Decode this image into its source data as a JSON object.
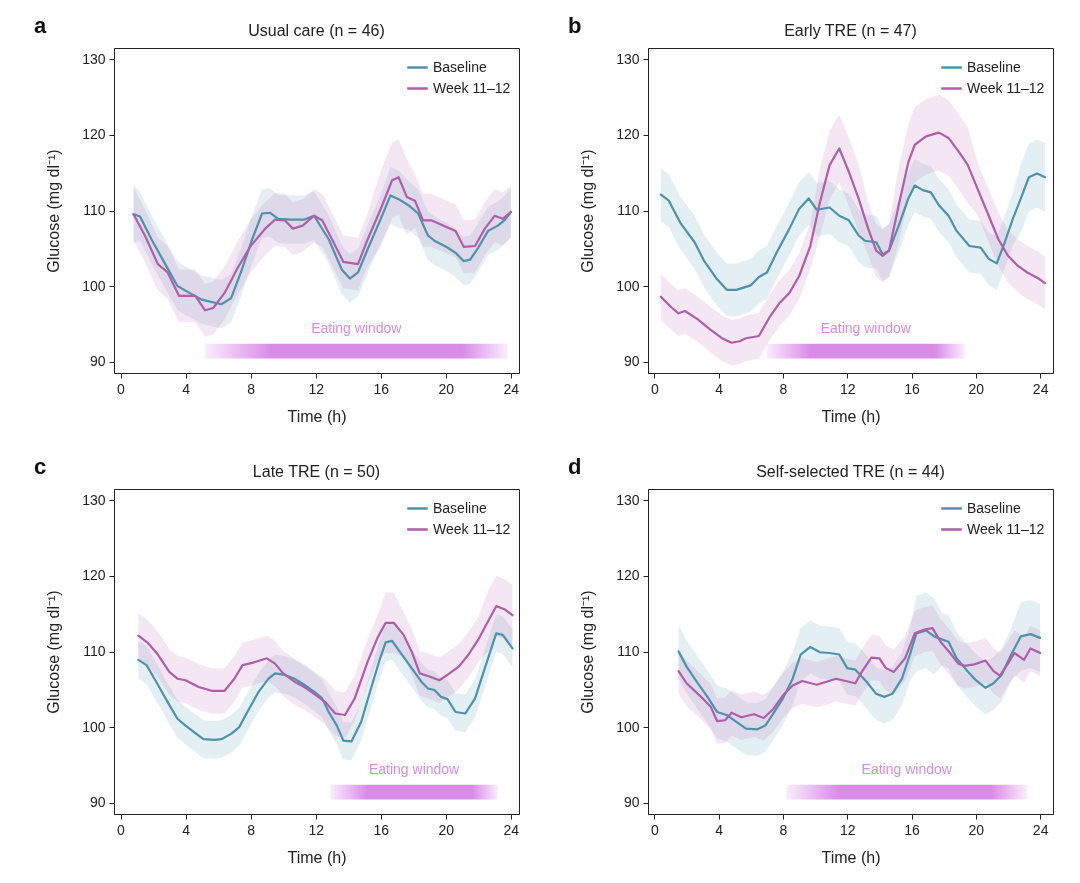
{
  "chart_data": [
    {
      "type": "line",
      "title": "Usual care (n = 46)",
      "xlabel": "Time (h)",
      "ylabel": "Glucose (mg dl⁻¹)",
      "annotations": [
        "a"
      ],
      "xlim": [
        -0.4,
        24.5
      ],
      "ylim": [
        88.5,
        131.5
      ],
      "xticks": [
        0,
        4,
        8,
        12,
        16,
        20,
        24
      ],
      "yticks": [
        90,
        100,
        110,
        120,
        130
      ],
      "grid": false,
      "legend": "top right",
      "bands": [
        {
          "axis": "x",
          "from": 5.2,
          "to": 23.8,
          "label": "Eating window",
          "color": "#d98be8"
        }
      ],
      "series": [
        {
          "name": "Baseline",
          "color": "#4b93ad",
          "x": [
            0.8,
            1.2,
            1.9,
            2.7,
            3.5,
            4.4,
            5.0,
            5.8,
            6.2,
            6.8,
            7.4,
            8.1,
            8.7,
            9.2,
            9.7,
            10.5,
            11.3,
            11.9,
            12.8,
            13.6,
            14.1,
            14.6,
            15.2,
            16.0,
            16.6,
            17.1,
            17.7,
            18.3,
            18.9,
            19.3,
            20.1,
            20.6,
            21.1,
            21.5,
            22.0,
            22.6,
            23.2,
            23.6,
            24.0
          ],
          "values": [
            109.5,
            109.2,
            106.2,
            103.1,
            100.0,
            98.9,
            98.2,
            97.8,
            97.6,
            98.4,
            101.8,
            106.2,
            109.6,
            109.7,
            108.9,
            108.8,
            108.8,
            109.3,
            106.2,
            102.2,
            101.0,
            101.8,
            104.9,
            108.9,
            112.0,
            111.5,
            110.7,
            109.6,
            106.7,
            106.0,
            105.1,
            104.4,
            103.3,
            103.5,
            105.1,
            107.3,
            108.0,
            108.7,
            109.8
          ],
          "lower": [
            105.7,
            106.0,
            103.0,
            99.9,
            96.8,
            95.7,
            95.0,
            94.6,
            94.4,
            95.2,
            98.6,
            103.0,
            106.4,
            106.5,
            105.7,
            105.6,
            105.6,
            106.1,
            103.0,
            99.0,
            97.8,
            98.6,
            101.7,
            105.7,
            108.2,
            107.7,
            107.5,
            106.4,
            103.5,
            102.8,
            101.9,
            101.2,
            100.1,
            100.3,
            101.9,
            104.1,
            104.8,
            105.5,
            106.6
          ],
          "upper": [
            113.3,
            112.4,
            109.4,
            106.3,
            103.2,
            102.1,
            101.4,
            101.0,
            100.8,
            101.6,
            105.0,
            109.4,
            112.8,
            112.9,
            112.1,
            112.0,
            112.0,
            112.5,
            109.4,
            105.4,
            104.2,
            105.0,
            108.1,
            112.1,
            115.8,
            115.3,
            113.9,
            112.8,
            109.9,
            109.2,
            108.3,
            107.6,
            106.5,
            106.7,
            108.3,
            110.5,
            111.2,
            111.9,
            113.0
          ]
        },
        {
          "name": "Week 11–12",
          "color": "#b25cac",
          "x": [
            0.8,
            1.5,
            2.3,
            2.9,
            3.6,
            4.6,
            5.2,
            5.7,
            6.4,
            7.2,
            8.0,
            8.9,
            9.5,
            10.1,
            10.6,
            11.2,
            11.9,
            12.4,
            13.0,
            13.7,
            14.6,
            15.2,
            16.0,
            16.7,
            17.1,
            17.6,
            18.1,
            18.6,
            19.1,
            20.6,
            21.1,
            21.8,
            22.4,
            23.0,
            23.5,
            24.0
          ],
          "values": [
            109.5,
            106.7,
            102.9,
            101.8,
            98.7,
            98.7,
            96.8,
            97.1,
            99.1,
            102.4,
            105.3,
            107.6,
            108.8,
            108.7,
            107.6,
            108.0,
            109.3,
            108.7,
            106.2,
            103.2,
            102.9,
            106.2,
            110.2,
            114.0,
            114.4,
            111.8,
            111.3,
            108.7,
            108.7,
            107.3,
            105.2,
            105.3,
            107.6,
            109.3,
            108.9,
            109.8
          ],
          "lower": [
            106.0,
            103.2,
            99.4,
            98.3,
            95.2,
            95.2,
            93.3,
            93.6,
            95.6,
            98.9,
            101.8,
            104.1,
            105.3,
            105.2,
            104.1,
            104.5,
            105.8,
            105.2,
            102.7,
            99.7,
            99.4,
            102.7,
            105.2,
            109.0,
            109.4,
            106.8,
            107.8,
            105.2,
            105.2,
            103.8,
            101.7,
            101.8,
            104.1,
            105.8,
            105.4,
            106.3
          ],
          "upper": [
            113.0,
            110.2,
            106.4,
            105.3,
            102.2,
            102.2,
            100.3,
            100.6,
            102.6,
            105.9,
            108.8,
            111.1,
            112.3,
            112.2,
            111.1,
            111.5,
            112.8,
            112.2,
            109.7,
            106.7,
            106.4,
            109.7,
            115.2,
            119.0,
            119.4,
            116.8,
            114.8,
            112.2,
            112.2,
            110.8,
            108.7,
            108.8,
            111.1,
            112.8,
            112.4,
            113.3
          ]
        }
      ]
    },
    {
      "type": "line",
      "title": "Early TRE (n = 47)",
      "xlabel": "Time (h)",
      "ylabel": "Glucose (mg dl⁻¹)",
      "annotations": [
        "b"
      ],
      "xlim": [
        -0.4,
        24.8
      ],
      "ylim": [
        88.5,
        131.5
      ],
      "xticks": [
        0,
        4,
        8,
        12,
        16,
        20,
        24
      ],
      "yticks": [
        90,
        100,
        110,
        120,
        130
      ],
      "grid": false,
      "legend": "top right",
      "bands": [
        {
          "axis": "x",
          "from": 7.0,
          "to": 19.3,
          "label": "Eating window",
          "color": "#d98be8"
        }
      ],
      "series": [
        {
          "name": "Baseline",
          "color": "#4b93ad",
          "x": [
            0.4,
            0.9,
            1.6,
            2.5,
            3.1,
            3.9,
            4.5,
            5.1,
            6.0,
            6.5,
            7.0,
            7.6,
            8.4,
            9.0,
            9.6,
            10.1,
            10.9,
            11.5,
            12.1,
            12.7,
            13.1,
            13.8,
            14.2,
            14.6,
            15.2,
            15.8,
            16.2,
            16.7,
            17.2,
            17.7,
            18.3,
            18.8,
            19.6,
            20.3,
            20.8,
            21.3,
            21.8,
            22.3,
            22.8,
            23.3,
            23.8,
            24.3
          ],
          "values": [
            112.1,
            111.3,
            108.4,
            105.8,
            103.3,
            100.9,
            99.5,
            99.5,
            100.1,
            101.2,
            101.8,
            104.4,
            107.6,
            110.2,
            111.6,
            110.1,
            110.4,
            109.3,
            108.7,
            106.7,
            106.0,
            105.8,
            104.2,
            104.7,
            108.0,
            111.6,
            113.3,
            112.7,
            112.4,
            110.7,
            109.3,
            107.3,
            105.3,
            105.1,
            103.6,
            103.0,
            105.8,
            108.9,
            111.6,
            114.4,
            114.9,
            114.4
          ],
          "lower": [
            108.6,
            107.8,
            104.9,
            102.3,
            99.8,
            97.4,
            96.0,
            96.0,
            96.6,
            97.7,
            98.3,
            100.9,
            104.1,
            106.7,
            108.1,
            106.6,
            106.9,
            105.8,
            105.2,
            103.2,
            102.5,
            102.3,
            100.7,
            101.2,
            104.5,
            108.1,
            109.8,
            109.2,
            108.9,
            107.2,
            105.8,
            103.8,
            101.8,
            101.6,
            100.1,
            99.5,
            102.3,
            105.4,
            107.1,
            109.9,
            110.4,
            109.9
          ],
          "upper": [
            115.6,
            114.8,
            111.9,
            109.3,
            106.8,
            104.4,
            103.0,
            103.0,
            103.6,
            104.7,
            105.3,
            107.9,
            111.1,
            113.7,
            115.1,
            113.6,
            113.9,
            112.8,
            112.2,
            110.2,
            109.5,
            109.3,
            107.7,
            108.2,
            111.5,
            115.1,
            116.8,
            116.2,
            115.9,
            114.2,
            112.8,
            110.8,
            108.8,
            108.6,
            107.1,
            106.5,
            109.3,
            112.4,
            116.1,
            118.9,
            119.4,
            118.9
          ]
        },
        {
          "name": "Week 11–12",
          "color": "#b25cac",
          "x": [
            0.4,
            1.0,
            1.5,
            1.9,
            2.7,
            3.5,
            4.2,
            4.8,
            5.3,
            5.7,
            6.5,
            7.2,
            7.8,
            8.4,
            9.0,
            9.7,
            10.3,
            10.9,
            11.5,
            12.1,
            12.7,
            13.3,
            13.8,
            14.2,
            14.6,
            15.2,
            15.8,
            16.2,
            16.9,
            17.7,
            18.3,
            19.0,
            19.5,
            20.1,
            20.8,
            21.4,
            22.0,
            22.6,
            23.2,
            23.9,
            24.3
          ],
          "values": [
            98.6,
            97.3,
            96.4,
            96.7,
            95.6,
            94.2,
            93.1,
            92.5,
            92.7,
            93.1,
            93.4,
            96.0,
            97.8,
            99.1,
            101.3,
            105.3,
            111.1,
            116.0,
            118.2,
            115.1,
            111.6,
            107.6,
            104.7,
            104.0,
            104.7,
            110.7,
            116.4,
            118.7,
            119.8,
            120.3,
            119.6,
            117.6,
            116.0,
            112.9,
            109.3,
            106.2,
            104.0,
            102.7,
            101.8,
            101.0,
            100.4
          ],
          "lower": [
            95.6,
            94.3,
            93.4,
            93.7,
            92.6,
            91.2,
            90.1,
            89.5,
            89.7,
            90.1,
            90.4,
            93.0,
            94.8,
            96.1,
            98.3,
            102.3,
            106.6,
            111.5,
            113.7,
            110.6,
            107.1,
            104.1,
            101.2,
            100.5,
            101.2,
            105.7,
            111.4,
            113.7,
            114.8,
            115.3,
            114.6,
            112.6,
            111.0,
            109.4,
            105.8,
            102.7,
            100.5,
            99.2,
            98.3,
            97.5,
            96.9
          ],
          "upper": [
            101.6,
            100.3,
            99.4,
            99.7,
            98.6,
            97.2,
            96.1,
            95.5,
            95.7,
            96.1,
            96.4,
            99.0,
            100.8,
            102.1,
            104.3,
            108.3,
            115.6,
            120.5,
            122.7,
            119.6,
            116.1,
            111.1,
            108.2,
            107.5,
            108.2,
            115.7,
            121.4,
            123.7,
            124.8,
            125.3,
            124.6,
            122.6,
            121.0,
            116.4,
            112.8,
            109.7,
            107.5,
            106.2,
            105.3,
            104.5,
            103.9
          ]
        }
      ]
    },
    {
      "type": "line",
      "title": "Late TRE (n = 50)",
      "xlabel": "Time (h)",
      "ylabel": "Glucose (mg dl⁻¹)",
      "annotations": [
        "c"
      ],
      "xlim": [
        -0.4,
        24.5
      ],
      "ylim": [
        88.5,
        131.5
      ],
      "xticks": [
        0,
        4,
        8,
        12,
        16,
        20,
        24
      ],
      "yticks": [
        90,
        100,
        110,
        120,
        130
      ],
      "grid": false,
      "legend": "top right",
      "bands": [
        {
          "axis": "x",
          "from": 12.9,
          "to": 23.2,
          "label": "Eating window",
          "color": "#d98be8"
        }
      ],
      "series": [
        {
          "name": "Baseline",
          "color": "#4b93ad",
          "x": [
            1.1,
            1.6,
            2.3,
            2.9,
            3.5,
            4.0,
            4.6,
            5.1,
            5.8,
            6.2,
            6.8,
            7.3,
            7.8,
            8.5,
            9.1,
            9.5,
            10.1,
            10.7,
            11.3,
            11.9,
            12.4,
            12.8,
            13.3,
            13.7,
            14.2,
            14.8,
            15.4,
            15.9,
            16.3,
            16.7,
            17.3,
            17.9,
            18.5,
            18.9,
            19.3,
            19.7,
            20.1,
            20.6,
            21.2,
            21.8,
            22.4,
            23.1,
            23.5,
            24.1
          ],
          "values": [
            108.9,
            108.2,
            105.6,
            103.3,
            101.1,
            100.2,
            99.2,
            98.4,
            98.3,
            98.4,
            99.1,
            100.0,
            102.0,
            104.7,
            106.4,
            107.1,
            106.9,
            106.4,
            105.6,
            104.7,
            103.8,
            102.0,
            100.2,
            98.2,
            98.1,
            100.7,
            105.1,
            108.7,
            111.2,
            111.4,
            109.6,
            107.8,
            106.0,
            105.1,
            104.9,
            104.0,
            103.7,
            102.0,
            101.8,
            103.8,
            107.8,
            112.4,
            112.2,
            110.4
          ],
          "lower": [
            106.4,
            105.7,
            103.1,
            100.8,
            98.6,
            97.7,
            96.7,
            95.9,
            95.8,
            95.9,
            96.6,
            97.5,
            99.5,
            102.2,
            103.9,
            104.6,
            104.4,
            103.9,
            103.1,
            102.2,
            101.3,
            99.5,
            97.7,
            95.7,
            95.6,
            98.2,
            102.6,
            106.2,
            108.7,
            108.9,
            107.1,
            105.3,
            103.5,
            102.6,
            102.4,
            101.5,
            101.2,
            99.5,
            99.3,
            101.3,
            105.3,
            109.9,
            109.7,
            107.9
          ],
          "upper": [
            111.4,
            110.7,
            108.1,
            105.8,
            103.6,
            102.7,
            101.7,
            100.9,
            100.8,
            100.9,
            101.6,
            102.5,
            104.5,
            107.2,
            108.9,
            109.6,
            109.4,
            108.9,
            108.1,
            107.2,
            106.3,
            104.5,
            102.7,
            100.7,
            100.6,
            103.2,
            107.6,
            111.2,
            113.7,
            113.9,
            112.1,
            110.3,
            108.5,
            107.6,
            107.4,
            106.5,
            106.2,
            104.5,
            104.3,
            106.3,
            110.3,
            114.9,
            114.7,
            112.9
          ]
        },
        {
          "name": "Week 11–12",
          "color": "#b25cac",
          "x": [
            1.1,
            1.7,
            2.3,
            3.0,
            3.5,
            4.0,
            4.8,
            5.6,
            6.4,
            7.0,
            7.5,
            8.1,
            9.0,
            9.5,
            10.0,
            10.7,
            11.3,
            11.9,
            12.6,
            13.2,
            13.8,
            14.4,
            15.2,
            15.8,
            16.3,
            16.8,
            17.4,
            17.9,
            18.4,
            19.0,
            19.6,
            20.1,
            20.8,
            21.4,
            22.0,
            22.6,
            23.1,
            23.6,
            24.1
          ],
          "values": [
            112.1,
            111.1,
            109.6,
            107.3,
            106.4,
            106.2,
            105.3,
            104.8,
            104.8,
            106.4,
            108.2,
            108.5,
            109.1,
            108.4,
            107.1,
            106.0,
            105.3,
            104.4,
            103.3,
            101.8,
            101.6,
            103.8,
            108.7,
            111.8,
            113.8,
            113.8,
            112.2,
            110.0,
            107.1,
            106.7,
            106.2,
            106.9,
            108.0,
            109.6,
            111.6,
            114.0,
            116.0,
            115.6,
            114.8
          ],
          "lower": [
            109.1,
            108.1,
            106.6,
            104.3,
            103.4,
            103.2,
            102.3,
            101.8,
            101.8,
            103.4,
            105.2,
            105.5,
            106.1,
            105.4,
            104.1,
            103.0,
            102.3,
            101.4,
            100.3,
            98.8,
            98.6,
            100.8,
            105.7,
            108.8,
            109.8,
            109.8,
            109.2,
            107.0,
            104.1,
            103.7,
            103.2,
            103.9,
            105.0,
            106.6,
            108.6,
            110.0,
            112.0,
            111.6,
            110.8
          ],
          "upper": [
            115.1,
            114.1,
            112.6,
            110.3,
            109.4,
            109.2,
            108.3,
            107.8,
            107.8,
            109.4,
            111.2,
            111.5,
            112.1,
            111.4,
            110.1,
            109.0,
            108.3,
            107.4,
            106.3,
            104.8,
            104.6,
            106.8,
            111.7,
            114.8,
            117.8,
            117.8,
            115.2,
            113.0,
            110.1,
            109.7,
            109.2,
            109.9,
            111.0,
            112.6,
            114.6,
            118.0,
            120.0,
            119.6,
            118.8
          ]
        }
      ]
    },
    {
      "type": "line",
      "title": "Self-selected TRE (n = 44)",
      "xlabel": "Time (h)",
      "ylabel": "Glucose (mg dl⁻¹)",
      "annotations": [
        "d"
      ],
      "xlim": [
        -0.4,
        24.8
      ],
      "ylim": [
        88.5,
        131.5
      ],
      "xticks": [
        0,
        4,
        8,
        12,
        16,
        20,
        24
      ],
      "yticks": [
        90,
        100,
        110,
        120,
        130
      ],
      "grid": false,
      "legend": "top right",
      "bands": [
        {
          "axis": "x",
          "from": 8.2,
          "to": 23.2,
          "label": "Eating window",
          "color": "#d98be8"
        }
      ],
      "series": [
        {
          "name": "Baseline",
          "color": "#4b93ad",
          "x": [
            1.5,
            2.0,
            2.7,
            3.3,
            3.9,
            4.5,
            5.1,
            5.7,
            6.4,
            6.9,
            7.4,
            8.0,
            8.6,
            9.1,
            9.7,
            10.3,
            10.9,
            11.5,
            12.0,
            12.5,
            13.2,
            13.8,
            14.3,
            14.8,
            15.4,
            15.9,
            16.3,
            16.9,
            17.4,
            17.9,
            18.3,
            18.8,
            19.4,
            20.0,
            20.6,
            21.1,
            21.6,
            22.2,
            22.8,
            23.4,
            24.0
          ],
          "values": [
            110.0,
            108.0,
            105.8,
            104.0,
            102.0,
            101.6,
            100.7,
            99.8,
            99.7,
            100.2,
            101.8,
            103.8,
            106.4,
            109.6,
            110.6,
            109.9,
            109.8,
            109.6,
            107.8,
            107.6,
            106.0,
            104.4,
            104.0,
            104.4,
            106.4,
            109.6,
            112.4,
            112.8,
            112.0,
            111.6,
            111.3,
            109.1,
            107.6,
            106.2,
            105.2,
            105.8,
            106.9,
            109.6,
            112.0,
            112.3,
            111.8
          ],
          "lower": [
            106.5,
            104.5,
            102.3,
            100.5,
            98.5,
            98.1,
            97.2,
            96.3,
            96.2,
            96.7,
            98.3,
            100.3,
            102.9,
            106.1,
            107.1,
            106.4,
            106.3,
            106.1,
            104.3,
            104.1,
            102.5,
            100.9,
            100.5,
            100.9,
            102.9,
            106.1,
            107.4,
            107.8,
            107.0,
            108.1,
            107.8,
            105.6,
            104.1,
            102.7,
            101.7,
            102.3,
            103.4,
            106.1,
            107.5,
            107.8,
            107.3
          ],
          "upper": [
            113.5,
            111.5,
            109.3,
            107.5,
            105.5,
            105.1,
            104.2,
            103.3,
            103.2,
            103.7,
            105.3,
            107.3,
            109.9,
            113.1,
            114.1,
            113.4,
            113.3,
            113.1,
            111.3,
            111.1,
            109.5,
            107.9,
            107.5,
            107.9,
            109.9,
            113.1,
            117.4,
            117.8,
            117.0,
            115.1,
            114.8,
            112.6,
            111.1,
            109.7,
            108.7,
            109.3,
            110.4,
            113.1,
            116.5,
            116.8,
            116.3
          ]
        },
        {
          "name": "Week 11–12",
          "color": "#b25cac",
          "x": [
            1.5,
            2.0,
            2.9,
            3.5,
            3.9,
            4.4,
            4.8,
            5.4,
            6.2,
            6.8,
            7.4,
            8.0,
            8.6,
            9.2,
            10.1,
            10.7,
            11.3,
            11.9,
            12.5,
            12.9,
            13.5,
            14.0,
            14.4,
            14.9,
            15.6,
            16.2,
            16.8,
            17.3,
            17.8,
            18.4,
            18.9,
            19.3,
            19.9,
            20.6,
            21.1,
            21.5,
            22.0,
            22.4,
            23.0,
            23.4,
            24.0
          ],
          "values": [
            107.4,
            105.8,
            104.0,
            102.7,
            100.8,
            100.9,
            101.9,
            101.3,
            101.7,
            101.2,
            102.4,
            104.2,
            105.5,
            106.1,
            105.6,
            106.0,
            106.4,
            106.1,
            105.8,
            107.3,
            109.2,
            109.1,
            107.8,
            107.3,
            109.1,
            112.4,
            112.9,
            113.1,
            111.3,
            109.8,
            108.4,
            108.1,
            108.3,
            108.8,
            107.4,
            106.8,
            108.4,
            109.8,
            108.9,
            110.4,
            109.8
          ],
          "lower": [
            104.4,
            102.8,
            101.0,
            99.7,
            97.8,
            97.9,
            98.9,
            98.3,
            98.7,
            98.2,
            99.4,
            101.2,
            102.5,
            103.1,
            102.6,
            103.0,
            103.4,
            103.1,
            102.8,
            104.3,
            106.2,
            106.1,
            104.8,
            104.3,
            106.1,
            109.4,
            109.9,
            110.1,
            108.3,
            106.8,
            105.4,
            105.1,
            105.3,
            105.8,
            104.4,
            103.8,
            105.4,
            106.8,
            105.9,
            107.4,
            106.8
          ],
          "upper": [
            110.4,
            108.8,
            107.0,
            105.7,
            103.8,
            103.9,
            104.9,
            104.3,
            104.7,
            104.2,
            105.4,
            107.2,
            108.5,
            109.1,
            108.6,
            109.0,
            109.4,
            109.1,
            108.8,
            110.3,
            112.2,
            112.1,
            110.8,
            110.3,
            112.1,
            115.4,
            115.9,
            116.1,
            114.3,
            112.8,
            111.4,
            111.1,
            111.3,
            111.8,
            110.4,
            109.8,
            111.4,
            112.8,
            111.9,
            113.4,
            112.8
          ]
        }
      ]
    }
  ]
}
